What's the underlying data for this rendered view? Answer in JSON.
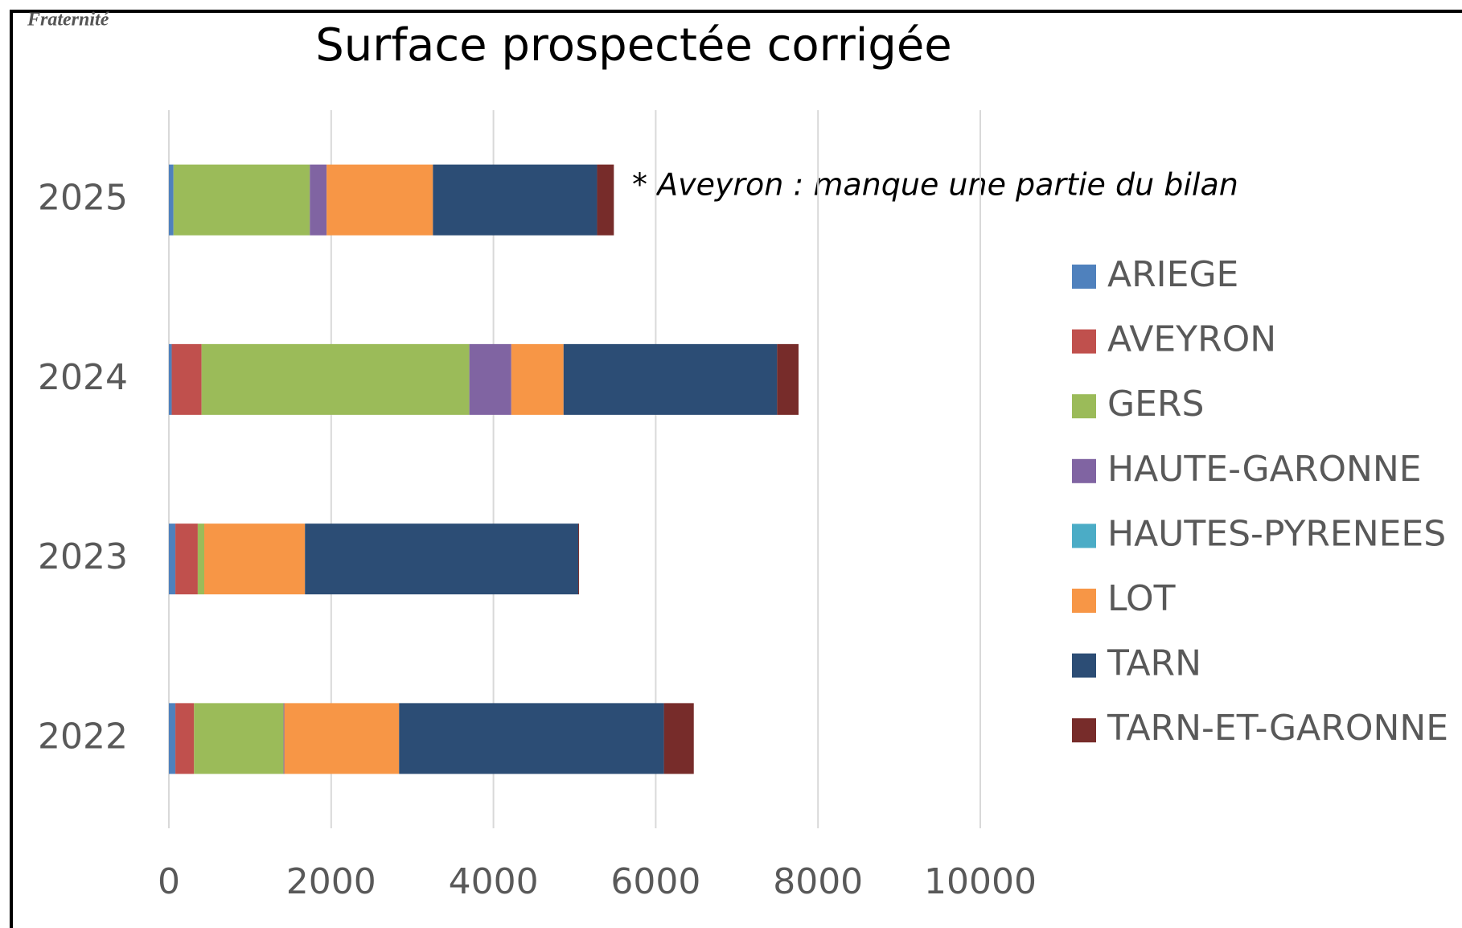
{
  "header": {
    "logo_text": "Fraternité"
  },
  "chart_data": {
    "type": "stacked-barh",
    "title": "Surface prospectée corrigée",
    "annotation": "* Aveyron : manque une partie du bilan",
    "categories": [
      "2022",
      "2023",
      "2024",
      "2025"
    ],
    "series": [
      {
        "name": "ARIEGE",
        "color": "#4f81bd",
        "values": [
          80,
          80,
          35,
          57
        ]
      },
      {
        "name": "AVEYRON",
        "color": "#c0504d",
        "values": [
          230,
          276,
          368,
          0
        ]
      },
      {
        "name": "GERS",
        "color": "#9bbb59",
        "values": [
          1103,
          80,
          3300,
          1680
        ]
      },
      {
        "name": "HAUTE-GARONNE",
        "color": "#8064a2",
        "values": [
          10,
          0,
          517,
          207
        ]
      },
      {
        "name": "HAUTES-PYRENEES",
        "color": "#4bacc6",
        "values": [
          0,
          0,
          0,
          0
        ]
      },
      {
        "name": "LOT",
        "color": "#f79646",
        "values": [
          1414,
          1241,
          644,
          1310
        ]
      },
      {
        "name": "TARN",
        "color": "#2c4d75",
        "values": [
          3264,
          3368,
          2632,
          2023
        ]
      },
      {
        "name": "TARN-ET-GARONNE",
        "color": "#772c2a",
        "values": [
          368,
          10,
          264,
          207
        ]
      }
    ],
    "xlim": [
      0,
      10000
    ],
    "xticks": [
      0,
      2000,
      4000,
      6000,
      8000,
      10000
    ],
    "grid": true,
    "legend": "right"
  }
}
